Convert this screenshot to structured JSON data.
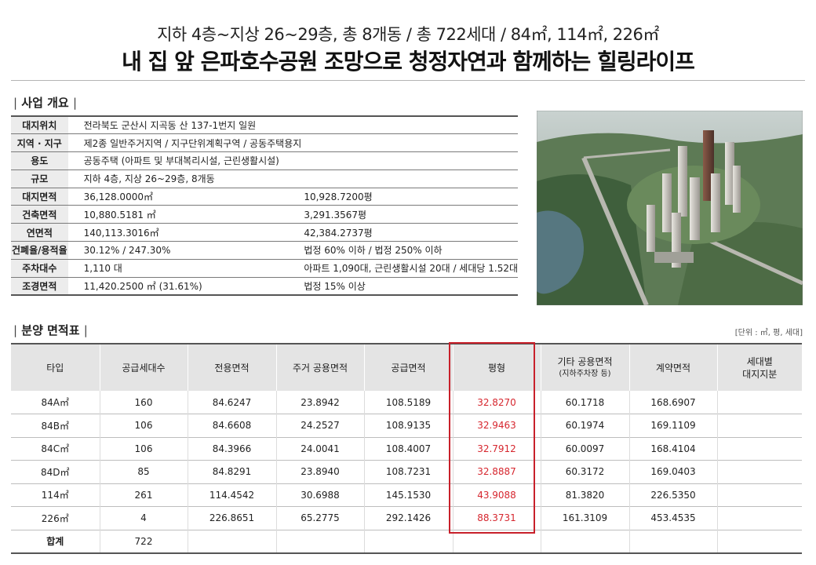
{
  "header": {
    "subtitle": "지하 4층~지상 26~29층, 총 8개동 / 총 722세대 / 84㎡, 114㎡, 226㎡",
    "headline": "내 집 앞 은파호수공원 조망으로 청정자연과 함께하는 힐링라이프"
  },
  "overview": {
    "title": "사업 개요",
    "rows": [
      {
        "label": "대지위치",
        "v1": "전라북도 군산시 지곡동 산 137-1번지 일원",
        "v2": ""
      },
      {
        "label": "지역 · 지구",
        "v1": "제2종 일반주거지역 / 지구단위계획구역 / 공동주택용지",
        "v2": ""
      },
      {
        "label": "용도",
        "v1": "공동주택 (아파트 및 부대복리시설, 근린생활시설)",
        "v2": ""
      },
      {
        "label": "규모",
        "v1": "지하 4층, 지상 26~29층, 8개동",
        "v2": ""
      },
      {
        "label": "대지면적",
        "v1": "36,128.0000㎡",
        "v2": "10,928.7200평"
      },
      {
        "label": "건축면적",
        "v1": "10,880.5181 ㎡",
        "v2": "3,291.3567평"
      },
      {
        "label": "연면적",
        "v1": "140,113.3016㎡",
        "v2": "42,384.2737평"
      },
      {
        "label": "건폐율/용적율",
        "v1": "30.12% / 247.30%",
        "v2": "법정 60% 이하 / 법정 250% 이하"
      },
      {
        "label": "주차대수",
        "v1": "1,110 대",
        "v2": "아파트 1,090대, 근린생활시설 20대 / 세대당 1.52대"
      },
      {
        "label": "조경면적",
        "v1": "11,420.2500 ㎡ (31.61%)",
        "v2": "법정 15% 이상"
      }
    ]
  },
  "area": {
    "title": "분양 면적표",
    "unit_note": "[단위 : ㎡, 평, 세대]",
    "headers": [
      "타입",
      "공급세대수",
      "전용면적",
      "주거 공용면적",
      "공급면적",
      "평형",
      "기타 공용면적",
      "계약면적",
      "세대별"
    ],
    "header_sub": {
      "col7": "(지하주차장 등)",
      "col9": "대지지분"
    },
    "rows": [
      [
        "84A㎡",
        "160",
        "84.6247",
        "23.8942",
        "108.5189",
        "32.8270",
        "60.1718",
        "168.6907",
        ""
      ],
      [
        "84B㎡",
        "106",
        "84.6608",
        "24.2527",
        "108.9135",
        "32.9463",
        "60.1974",
        "169.1109",
        ""
      ],
      [
        "84C㎡",
        "106",
        "84.3966",
        "24.0041",
        "108.4007",
        "32.7912",
        "60.0097",
        "168.4104",
        ""
      ],
      [
        "84D㎡",
        "85",
        "84.8291",
        "23.8940",
        "108.7231",
        "32.8887",
        "60.3172",
        "169.0403",
        ""
      ],
      [
        "114㎡",
        "261",
        "114.4542",
        "30.6988",
        "145.1530",
        "43.9088",
        "81.3820",
        "226.5350",
        ""
      ],
      [
        "226㎡",
        "4",
        "226.8651",
        "65.2775",
        "292.1426",
        "88.3731",
        "161.3109",
        "453.4535",
        ""
      ]
    ],
    "total": {
      "label": "합계",
      "units": "722"
    },
    "highlight_color": "#c8202a"
  }
}
